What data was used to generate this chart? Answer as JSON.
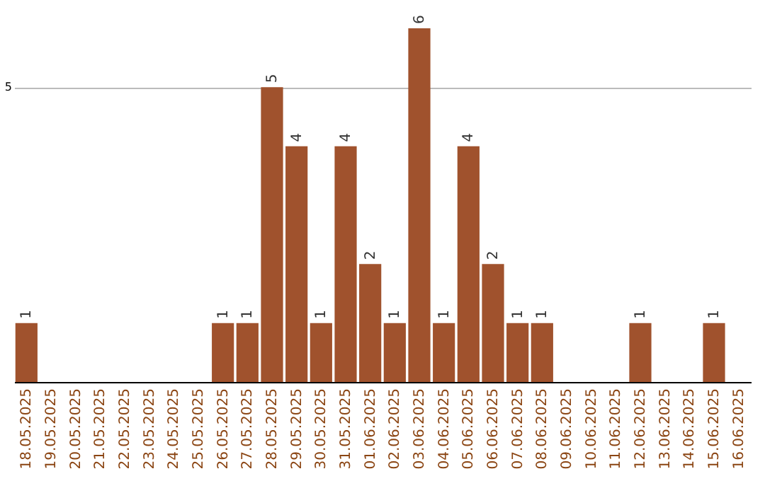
{
  "chart_data": {
    "type": "bar",
    "categories": [
      "18.05.2025",
      "19.05.2025",
      "20.05.2025",
      "21.05.2025",
      "22.05.2025",
      "23.05.2025",
      "24.05.2025",
      "25.05.2025",
      "26.05.2025",
      "27.05.2025",
      "28.05.2025",
      "29.05.2025",
      "30.05.2025",
      "31.05.2025",
      "01.06.2025",
      "02.06.2025",
      "03.06.2025",
      "04.06.2025",
      "05.06.2025",
      "06.06.2025",
      "07.06.2025",
      "08.06.2025",
      "09.06.2025",
      "10.06.2025",
      "11.06.2025",
      "12.06.2025",
      "13.06.2025",
      "14.06.2025",
      "15.06.2025",
      "16.06.2025"
    ],
    "values": [
      1,
      0,
      0,
      0,
      0,
      0,
      0,
      0,
      1,
      1,
      5,
      4,
      1,
      4,
      2,
      1,
      6,
      1,
      4,
      2,
      1,
      1,
      0,
      0,
      0,
      1,
      0,
      0,
      1,
      0
    ],
    "value_labels": [
      "1",
      null,
      null,
      null,
      null,
      null,
      null,
      null,
      "1",
      "1",
      "5",
      "4",
      "1",
      "4",
      "2",
      "1",
      "6",
      "1",
      "4",
      "2",
      "1",
      "1",
      null,
      null,
      null,
      "1",
      null,
      null,
      "1",
      null
    ],
    "color": "#a0522d",
    "ylim": [
      0,
      6
    ],
    "yticks": [
      5
    ],
    "grid": "y"
  }
}
